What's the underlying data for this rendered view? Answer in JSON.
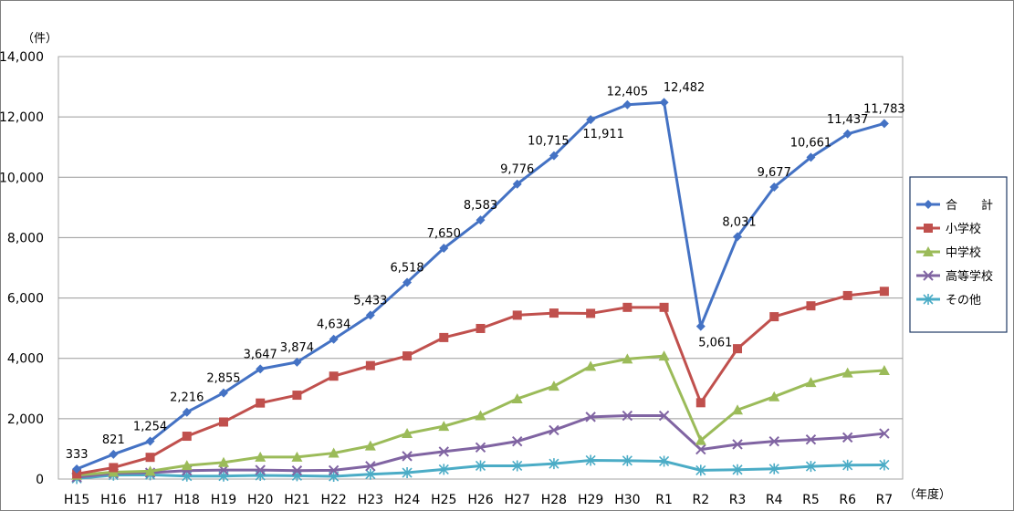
{
  "chart_data": {
    "type": "line",
    "y_unit": "（件）",
    "x_unit": "（年度）",
    "categories": [
      "H15",
      "H16",
      "H17",
      "H18",
      "H19",
      "H20",
      "H21",
      "H22",
      "H23",
      "H24",
      "H25",
      "H26",
      "H27",
      "H28",
      "H29",
      "H30",
      "R1",
      "R2",
      "R3",
      "R4",
      "R5",
      "R6",
      "R7"
    ],
    "ylim": [
      0,
      14000
    ],
    "yticks": [
      "0",
      "2,000",
      "4,000",
      "6,000",
      "8,000",
      "10,000",
      "12,000",
      "14,000"
    ],
    "grid": true,
    "legend_position": "right",
    "series": [
      {
        "name": "合　　計",
        "color": "#4472c4",
        "marker": "diamond",
        "values": [
          333,
          821,
          1254,
          2216,
          2855,
          3647,
          3874,
          4634,
          5433,
          6518,
          7650,
          8583,
          9776,
          10715,
          11911,
          12405,
          12482,
          5061,
          8031,
          9677,
          10661,
          11437,
          11783
        ],
        "labels": [
          "333",
          "821",
          "1,254",
          "2,216",
          "2,855",
          "3,647",
          "3,874",
          "4,634",
          "5,433",
          "6,518",
          "7,650",
          "8,583",
          "9,776",
          "10,715",
          "11,911",
          "12,405",
          "12,482",
          "5,061",
          "8,031",
          "9,677",
          "10,661",
          "11,437",
          "11,783"
        ]
      },
      {
        "name": "小学校",
        "color": "#c0504d",
        "marker": "square",
        "values": [
          170,
          380,
          720,
          1420,
          1890,
          2520,
          2780,
          3410,
          3760,
          4080,
          4690,
          4990,
          5430,
          5500,
          5490,
          5690,
          5690,
          2530,
          4320,
          5380,
          5740,
          6080,
          6220
        ]
      },
      {
        "name": "中学校",
        "color": "#9bbb59",
        "marker": "triangle",
        "values": [
          130,
          230,
          260,
          450,
          550,
          730,
          730,
          860,
          1100,
          1510,
          1750,
          2100,
          2660,
          3080,
          3740,
          3980,
          4080,
          1280,
          2290,
          2730,
          3200,
          3520,
          3600
        ]
      },
      {
        "name": "高等学校",
        "color": "#8064a2",
        "marker": "x",
        "values": [
          60,
          190,
          210,
          280,
          300,
          300,
          280,
          290,
          430,
          760,
          910,
          1050,
          1250,
          1620,
          2060,
          2100,
          2100,
          980,
          1150,
          1250,
          1310,
          1380,
          1510
        ]
      },
      {
        "name": "その他",
        "color": "#4bacc6",
        "marker": "star",
        "values": [
          20,
          130,
          140,
          100,
          100,
          120,
          110,
          90,
          160,
          210,
          320,
          440,
          440,
          510,
          620,
          610,
          590,
          290,
          310,
          340,
          420,
          460,
          470
        ]
      }
    ]
  }
}
